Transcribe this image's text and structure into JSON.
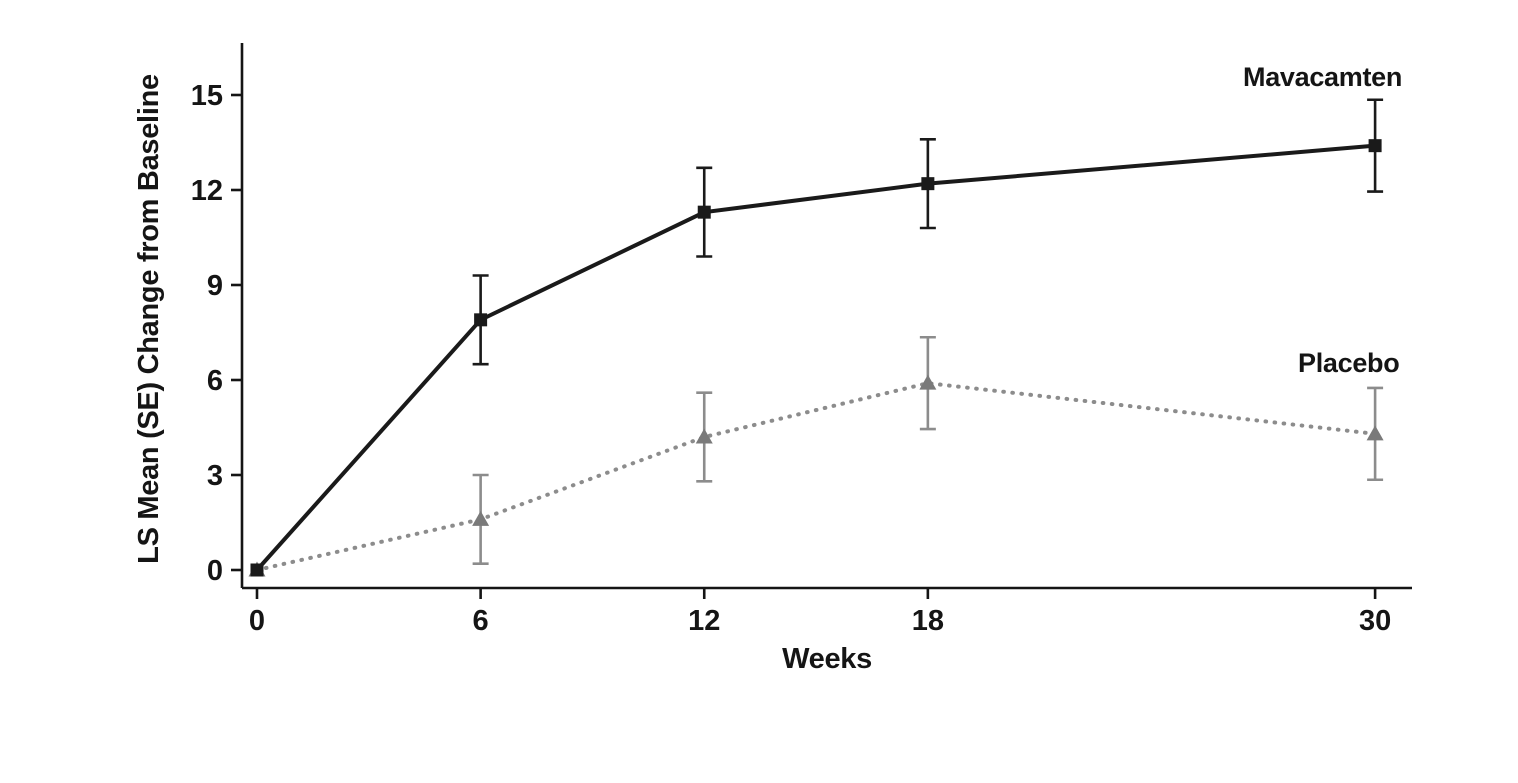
{
  "chart_data": {
    "type": "line",
    "title": "",
    "xlabel": "Weeks",
    "ylabel": "LS Mean (SE) Change from Baseline",
    "x": [
      0,
      6,
      12,
      18,
      30
    ],
    "x_ticks": [
      0,
      6,
      12,
      18,
      30
    ],
    "y_ticks": [
      0,
      3,
      6,
      9,
      12,
      15
    ],
    "xlim": [
      0,
      31
    ],
    "ylim": [
      0,
      16.6
    ],
    "grid": false,
    "legend_position": "inline-right",
    "series": [
      {
        "name": "Mavacamten",
        "values": [
          0,
          7.9,
          11.3,
          12.2,
          13.4
        ],
        "se": [
          0,
          1.4,
          1.4,
          1.4,
          1.45
        ],
        "marker": "square",
        "line_style": "solid",
        "color": "#1a1a1a",
        "marker_color": "#1a1a1a"
      },
      {
        "name": "Placebo",
        "values": [
          0,
          1.6,
          4.2,
          5.9,
          4.3
        ],
        "se": [
          0,
          1.4,
          1.4,
          1.45,
          1.45
        ],
        "marker": "triangle",
        "line_style": "dotted",
        "color": "#8c8c8c",
        "marker_color": "#7a7a7a"
      }
    ]
  },
  "colors": {
    "axis": "#151515",
    "background": "#ffffff"
  }
}
